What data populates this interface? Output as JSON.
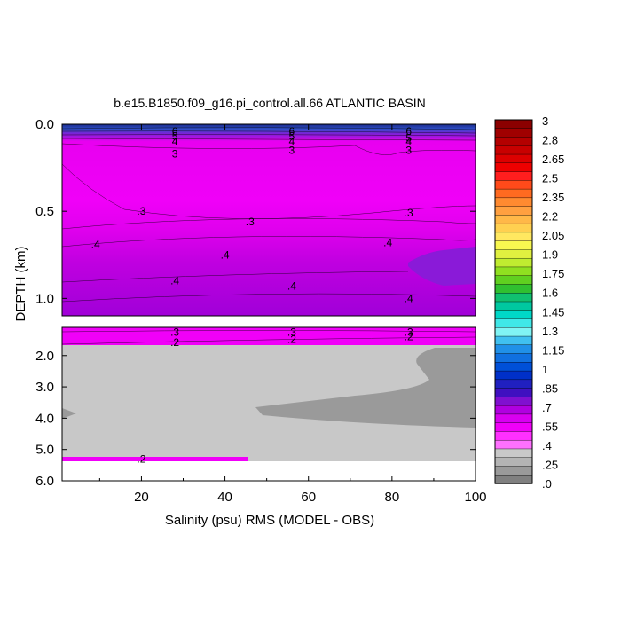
{
  "chart_data": {
    "type": "heatmap",
    "title": "b.e15.B1850.f09_g16.pi_control.all.66 ATLANTIC BASIN",
    "xlabel": "Salinity (psu) RMS (MODEL - OBS)",
    "ylabel": "DEPTH (km)",
    "xlim": [
      1,
      100
    ],
    "x_ticks": [
      20,
      40,
      60,
      80,
      100
    ],
    "upper_panel": {
      "ylim": [
        0,
        1.1
      ],
      "y_ticks": [
        "0.0",
        "0.5",
        "1.0"
      ],
      "y_tick_values": [
        0.0,
        0.5,
        1.0
      ]
    },
    "lower_panel": {
      "ylim": [
        1.1,
        6.0
      ],
      "y_ticks": [
        "2.0",
        "3.0",
        "4.0",
        "5.0",
        "6.0"
      ],
      "y_tick_values": [
        2.0,
        3.0,
        4.0,
        5.0,
        6.0
      ],
      "data_bottom_depth": 5.35
    },
    "grid": false,
    "colorbar": {
      "position": "right",
      "labels": [
        "3",
        "2.8",
        "2.65",
        "2.5",
        "2.35",
        "2.2",
        "2.05",
        "1.9",
        "1.75",
        "1.6",
        "1.45",
        "1.3",
        "1.15",
        "1",
        ".85",
        ".7",
        ".55",
        ".4",
        ".25",
        ".0"
      ],
      "colors": [
        "#8b0000",
        "#a00000",
        "#b40000",
        "#c80000",
        "#dc0000",
        "#ee0000",
        "#ff1e1e",
        "#ff4a1a",
        "#ff6a20",
        "#ff8a30",
        "#ffa040",
        "#ffb848",
        "#ffd050",
        "#ffe860",
        "#f8f850",
        "#e0f040",
        "#c0ec30",
        "#90e020",
        "#60d020",
        "#30c030",
        "#10c070",
        "#00c8a0",
        "#00d8c8",
        "#40e8e8",
        "#80f4f4",
        "#40c0f0",
        "#2090e8",
        "#1070e0",
        "#0050d8",
        "#0030c8",
        "#2020c0",
        "#4010c0",
        "#8010d0",
        "#b000e0",
        "#d800f0",
        "#f000f8",
        "#ff30ff",
        "#ff70ff",
        "#c8c8c8",
        "#b4b4b4",
        "#9a9a9a",
        "#808080"
      ],
      "range": [
        0,
        3
      ]
    },
    "contour_labels": [
      {
        "x": 28,
        "depth": 0.04,
        "text": "6"
      },
      {
        "x": 28,
        "depth": 0.07,
        "text": "5"
      },
      {
        "x": 28,
        "depth": 0.1,
        "text": "4"
      },
      {
        "x": 28,
        "depth": 0.17,
        "text": "3"
      },
      {
        "x": 56,
        "depth": 0.04,
        "text": "6"
      },
      {
        "x": 56,
        "depth": 0.07,
        "text": "5"
      },
      {
        "x": 56,
        "depth": 0.1,
        "text": "4"
      },
      {
        "x": 56,
        "depth": 0.15,
        "text": "3"
      },
      {
        "x": 84,
        "depth": 0.04,
        "text": "6"
      },
      {
        "x": 84,
        "depth": 0.08,
        "text": "5"
      },
      {
        "x": 84,
        "depth": 0.1,
        "text": "4"
      },
      {
        "x": 84,
        "depth": 0.15,
        "text": "3"
      },
      {
        "x": 20,
        "depth": 0.5,
        "text": ".3"
      },
      {
        "x": 46,
        "depth": 0.56,
        "text": ".3"
      },
      {
        "x": 84,
        "depth": 0.51,
        "text": ".3"
      },
      {
        "x": 9,
        "depth": 0.69,
        "text": ".4"
      },
      {
        "x": 40,
        "depth": 0.75,
        "text": ".4"
      },
      {
        "x": 79,
        "depth": 0.68,
        "text": ".4"
      },
      {
        "x": 28,
        "depth": 0.9,
        "text": ".4"
      },
      {
        "x": 56,
        "depth": 0.93,
        "text": ".4"
      },
      {
        "x": 84,
        "depth": 1.0,
        "text": ".4"
      },
      {
        "x": 28,
        "depth": 1.26,
        "text": ".3"
      },
      {
        "x": 28,
        "depth": 1.58,
        "text": ".2"
      },
      {
        "x": 56,
        "depth": 1.26,
        "text": ".3"
      },
      {
        "x": 56,
        "depth": 1.48,
        "text": ".2"
      },
      {
        "x": 84,
        "depth": 1.26,
        "text": ".3"
      },
      {
        "x": 84,
        "depth": 1.4,
        "text": ".2"
      },
      {
        "x": 20,
        "depth": 5.3,
        "text": ".2"
      }
    ]
  }
}
